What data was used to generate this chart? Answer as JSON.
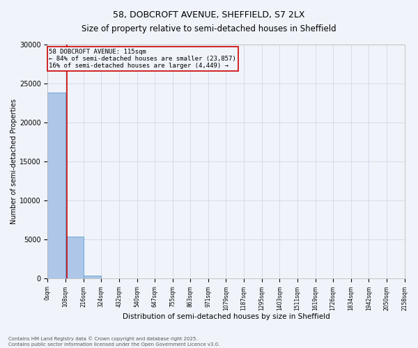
{
  "title_line1": "58, DOBCROFT AVENUE, SHEFFIELD, S7 2LX",
  "title_line2": "Size of property relative to semi-detached houses in Sheffield",
  "xlabel": "Distribution of semi-detached houses by size in Sheffield",
  "ylabel": "Number of semi-detached Properties",
  "annotation_title": "58 DOBCROFT AVENUE: 115sqm",
  "annotation_line2": "← 84% of semi-detached houses are smaller (23,857)",
  "annotation_line3": "16% of semi-detached houses are larger (4,449) →",
  "property_size": 115,
  "bin_edges": [
    0,
    108,
    216,
    324,
    432,
    540,
    647,
    755,
    863,
    971,
    1079,
    1187,
    1295,
    1403,
    1511,
    1619,
    1726,
    1834,
    1942,
    2050,
    2158
  ],
  "bar_heights": [
    23857,
    5371,
    430,
    48,
    6,
    0,
    0,
    0,
    0,
    0,
    0,
    0,
    0,
    0,
    0,
    0,
    0,
    0,
    0,
    0
  ],
  "bar_color": "#aec6e8",
  "bar_edge_color": "#5a9fd4",
  "red_line_color": "#cc0000",
  "annotation_box_color": "#cc0000",
  "grid_color": "#d0d8e8",
  "background_color": "#f0f4fa",
  "ylim": [
    0,
    30000
  ],
  "yticks": [
    0,
    5000,
    10000,
    15000,
    20000,
    25000,
    30000
  ],
  "footer_line1": "Contains HM Land Registry data © Crown copyright and database right 2025.",
  "footer_line2": "Contains public sector information licensed under the Open Government Licence v3.0.",
  "title_fontsize": 9,
  "ylabel_fontsize": 7,
  "xlabel_fontsize": 7.5,
  "xtick_fontsize": 5.5,
  "ytick_fontsize": 7,
  "annotation_fontsize": 6.5,
  "footer_fontsize": 5
}
